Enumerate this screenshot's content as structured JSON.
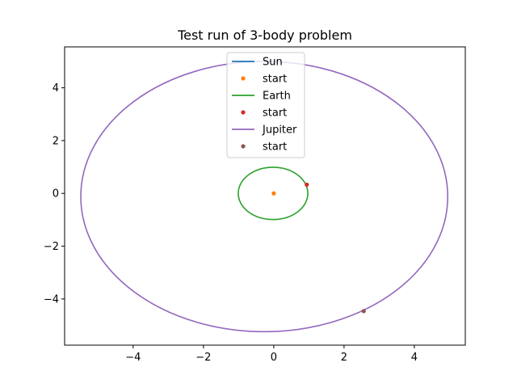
{
  "chart_data": {
    "type": "line",
    "title": "Test run of 3-body problem",
    "xlabel": "",
    "ylabel": "",
    "xlim": [
      -5.95,
      5.45
    ],
    "ylim": [
      -5.75,
      5.55
    ],
    "xticks": [
      -4,
      -2,
      0,
      2,
      4
    ],
    "yticks": [
      -4,
      -2,
      0,
      2,
      4
    ],
    "grid": false,
    "legend_placement": "top-center",
    "series": [
      {
        "name": "Sun",
        "kind": "line",
        "color": "#1f77b4",
        "orbit": {
          "cx": 0,
          "cy": 0,
          "rx": 0,
          "ry": 0
        }
      },
      {
        "name": "start",
        "kind": "marker",
        "color": "#ff7f0e",
        "point": [
          0,
          0
        ]
      },
      {
        "name": "Earth",
        "kind": "line",
        "color": "#2ca02c",
        "orbit": {
          "cx": -0.02,
          "cy": 0,
          "rx": 0.99,
          "ry": 0.99
        }
      },
      {
        "name": "start",
        "kind": "marker",
        "color": "#d62728",
        "point": [
          0.94,
          0.33
        ]
      },
      {
        "name": "Jupiter",
        "kind": "line",
        "color": "#9467bd",
        "orbit": {
          "cx": -0.27,
          "cy": -0.12,
          "rx": 5.22,
          "ry": 5.12
        }
      },
      {
        "name": "start",
        "kind": "marker",
        "color": "#8c564b",
        "point": [
          2.56,
          -4.46
        ]
      }
    ]
  }
}
